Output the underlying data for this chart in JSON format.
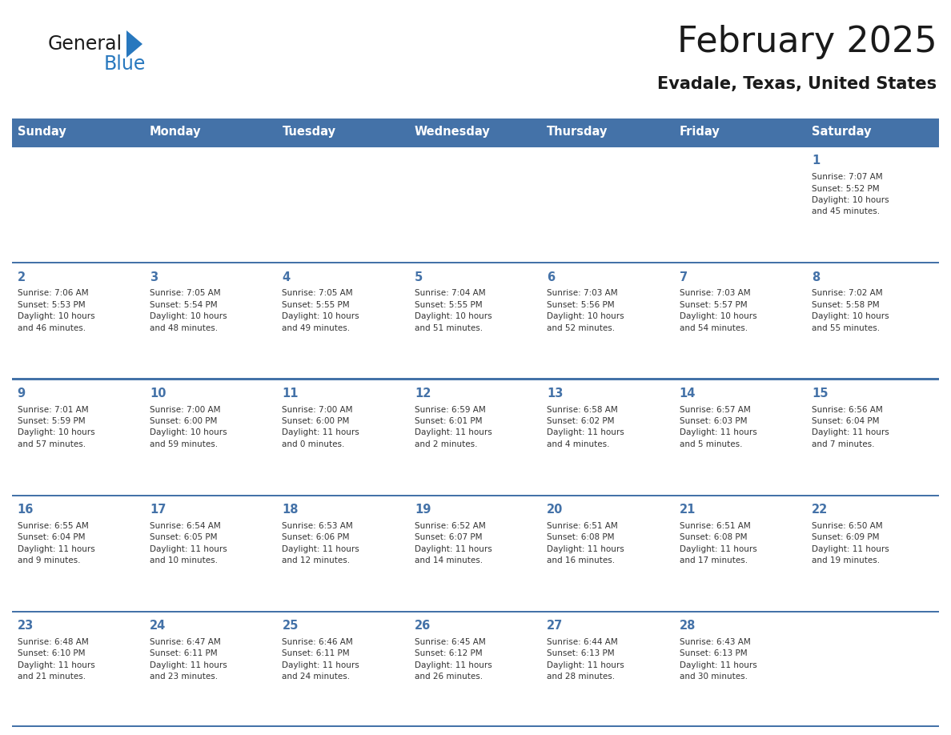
{
  "title": "February 2025",
  "subtitle": "Evadale, Texas, United States",
  "header_bg_color": "#4472a8",
  "header_text_color": "#ffffff",
  "cell_bg_color": "#ffffff",
  "day_number_color": "#4472a8",
  "cell_text_color": "#333333",
  "border_color": "#4472a8",
  "separator_color": "#8aaed4",
  "days_of_week": [
    "Sunday",
    "Monday",
    "Tuesday",
    "Wednesday",
    "Thursday",
    "Friday",
    "Saturday"
  ],
  "weeks": [
    [
      {
        "day": "",
        "info": ""
      },
      {
        "day": "",
        "info": ""
      },
      {
        "day": "",
        "info": ""
      },
      {
        "day": "",
        "info": ""
      },
      {
        "day": "",
        "info": ""
      },
      {
        "day": "",
        "info": ""
      },
      {
        "day": "1",
        "info": "Sunrise: 7:07 AM\nSunset: 5:52 PM\nDaylight: 10 hours\nand 45 minutes."
      }
    ],
    [
      {
        "day": "2",
        "info": "Sunrise: 7:06 AM\nSunset: 5:53 PM\nDaylight: 10 hours\nand 46 minutes."
      },
      {
        "day": "3",
        "info": "Sunrise: 7:05 AM\nSunset: 5:54 PM\nDaylight: 10 hours\nand 48 minutes."
      },
      {
        "day": "4",
        "info": "Sunrise: 7:05 AM\nSunset: 5:55 PM\nDaylight: 10 hours\nand 49 minutes."
      },
      {
        "day": "5",
        "info": "Sunrise: 7:04 AM\nSunset: 5:55 PM\nDaylight: 10 hours\nand 51 minutes."
      },
      {
        "day": "6",
        "info": "Sunrise: 7:03 AM\nSunset: 5:56 PM\nDaylight: 10 hours\nand 52 minutes."
      },
      {
        "day": "7",
        "info": "Sunrise: 7:03 AM\nSunset: 5:57 PM\nDaylight: 10 hours\nand 54 minutes."
      },
      {
        "day": "8",
        "info": "Sunrise: 7:02 AM\nSunset: 5:58 PM\nDaylight: 10 hours\nand 55 minutes."
      }
    ],
    [
      {
        "day": "9",
        "info": "Sunrise: 7:01 AM\nSunset: 5:59 PM\nDaylight: 10 hours\nand 57 minutes."
      },
      {
        "day": "10",
        "info": "Sunrise: 7:00 AM\nSunset: 6:00 PM\nDaylight: 10 hours\nand 59 minutes."
      },
      {
        "day": "11",
        "info": "Sunrise: 7:00 AM\nSunset: 6:00 PM\nDaylight: 11 hours\nand 0 minutes."
      },
      {
        "day": "12",
        "info": "Sunrise: 6:59 AM\nSunset: 6:01 PM\nDaylight: 11 hours\nand 2 minutes."
      },
      {
        "day": "13",
        "info": "Sunrise: 6:58 AM\nSunset: 6:02 PM\nDaylight: 11 hours\nand 4 minutes."
      },
      {
        "day": "14",
        "info": "Sunrise: 6:57 AM\nSunset: 6:03 PM\nDaylight: 11 hours\nand 5 minutes."
      },
      {
        "day": "15",
        "info": "Sunrise: 6:56 AM\nSunset: 6:04 PM\nDaylight: 11 hours\nand 7 minutes."
      }
    ],
    [
      {
        "day": "16",
        "info": "Sunrise: 6:55 AM\nSunset: 6:04 PM\nDaylight: 11 hours\nand 9 minutes."
      },
      {
        "day": "17",
        "info": "Sunrise: 6:54 AM\nSunset: 6:05 PM\nDaylight: 11 hours\nand 10 minutes."
      },
      {
        "day": "18",
        "info": "Sunrise: 6:53 AM\nSunset: 6:06 PM\nDaylight: 11 hours\nand 12 minutes."
      },
      {
        "day": "19",
        "info": "Sunrise: 6:52 AM\nSunset: 6:07 PM\nDaylight: 11 hours\nand 14 minutes."
      },
      {
        "day": "20",
        "info": "Sunrise: 6:51 AM\nSunset: 6:08 PM\nDaylight: 11 hours\nand 16 minutes."
      },
      {
        "day": "21",
        "info": "Sunrise: 6:51 AM\nSunset: 6:08 PM\nDaylight: 11 hours\nand 17 minutes."
      },
      {
        "day": "22",
        "info": "Sunrise: 6:50 AM\nSunset: 6:09 PM\nDaylight: 11 hours\nand 19 minutes."
      }
    ],
    [
      {
        "day": "23",
        "info": "Sunrise: 6:48 AM\nSunset: 6:10 PM\nDaylight: 11 hours\nand 21 minutes."
      },
      {
        "day": "24",
        "info": "Sunrise: 6:47 AM\nSunset: 6:11 PM\nDaylight: 11 hours\nand 23 minutes."
      },
      {
        "day": "25",
        "info": "Sunrise: 6:46 AM\nSunset: 6:11 PM\nDaylight: 11 hours\nand 24 minutes."
      },
      {
        "day": "26",
        "info": "Sunrise: 6:45 AM\nSunset: 6:12 PM\nDaylight: 11 hours\nand 26 minutes."
      },
      {
        "day": "27",
        "info": "Sunrise: 6:44 AM\nSunset: 6:13 PM\nDaylight: 11 hours\nand 28 minutes."
      },
      {
        "day": "28",
        "info": "Sunrise: 6:43 AM\nSunset: 6:13 PM\nDaylight: 11 hours\nand 30 minutes."
      },
      {
        "day": "",
        "info": ""
      }
    ]
  ],
  "logo_general_color": "#1a1a1a",
  "logo_blue_color": "#2878be",
  "fig_width": 11.88,
  "fig_height": 9.18,
  "dpi": 100
}
